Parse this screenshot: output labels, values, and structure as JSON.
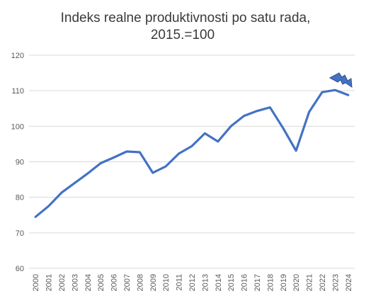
{
  "chart_data": {
    "type": "line",
    "title": "Indeks realne produktivnosti po satu rada,",
    "subtitle": "2015.=100",
    "categories": [
      "2000",
      "2001",
      "2002",
      "2003",
      "2004",
      "2005",
      "2006",
      "2007",
      "2008",
      "2009",
      "2010",
      "2011",
      "2012",
      "2013",
      "2014",
      "2015",
      "2016",
      "2017",
      "2018",
      "2019",
      "2020",
      "2021",
      "2022",
      "2023",
      "2024"
    ],
    "series": [
      {
        "color": "#4472c4",
        "values": [
          74.5,
          77.5,
          81.3,
          84.0,
          86.7,
          89.6,
          91.2,
          92.9,
          92.7,
          86.9,
          88.7,
          92.3,
          94.4,
          98.0,
          95.7,
          100.0,
          102.9,
          104.3,
          105.3,
          99.5,
          93.1,
          104.0,
          109.6,
          110.2,
          108.8
        ]
      }
    ],
    "ylim": [
      60,
      120
    ],
    "yticks": [
      "60",
      "70",
      "80",
      "90",
      "100",
      "110",
      "120"
    ],
    "grid": true,
    "annotation_icon": "lightning-bolt-icon",
    "annotation_color": "#4472c4"
  }
}
